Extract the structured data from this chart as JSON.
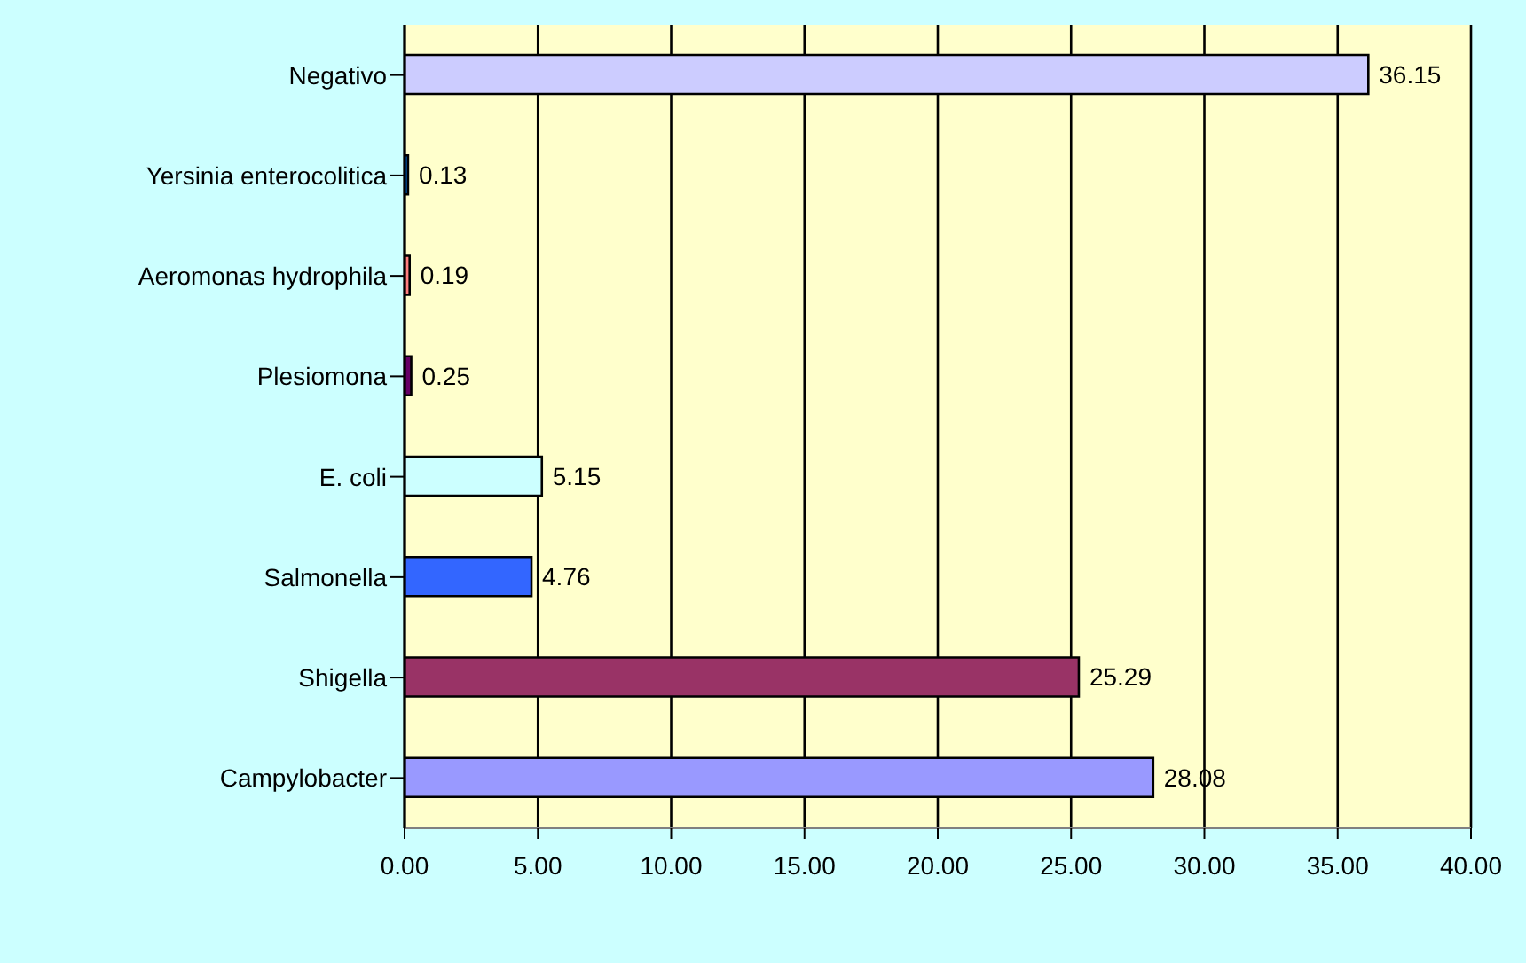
{
  "chart_data": {
    "type": "bar",
    "orientation": "horizontal",
    "categories": [
      "Negativo",
      "Yersinia enterocolitica",
      "Aeromonas hydrophila",
      "Plesiomona",
      "E. coli",
      "Salmonella",
      "Shigella",
      "Campylobacter"
    ],
    "values": [
      36.15,
      0.13,
      0.19,
      0.25,
      5.15,
      4.76,
      25.29,
      28.08
    ],
    "colors": [
      "#ccccff",
      "#0066cc",
      "#ff8080",
      "#660066",
      "#ccffff",
      "#3366ff",
      "#993366",
      "#9999ff"
    ],
    "xlim": [
      0,
      40
    ],
    "xticks": [
      {
        "value": 0,
        "label": "0.00"
      },
      {
        "value": 5,
        "label": "5.00"
      },
      {
        "value": 10,
        "label": "10.00"
      },
      {
        "value": 15,
        "label": "15.00"
      },
      {
        "value": 20,
        "label": "20.00"
      },
      {
        "value": 25,
        "label": "25.00"
      },
      {
        "value": 30,
        "label": "30.00"
      },
      {
        "value": 35,
        "label": "35.00"
      },
      {
        "value": 40,
        "label": "40.00"
      }
    ],
    "grid": "x",
    "data_labels": true
  }
}
